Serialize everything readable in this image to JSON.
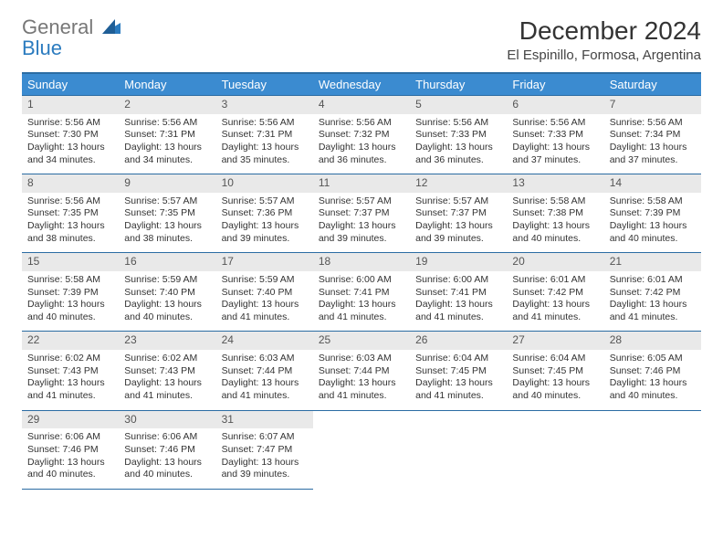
{
  "logo": {
    "line1": "General",
    "line2": "Blue"
  },
  "title": "December 2024",
  "subtitle": "El Espinillo, Formosa, Argentina",
  "colors": {
    "header_bg": "#3b8bd0",
    "header_text": "#ffffff",
    "daynum_bg": "#e9e9e9",
    "border": "#2b6ca3",
    "logo_blue": "#2b7bbf",
    "text": "#333333"
  },
  "dayNames": [
    "Sunday",
    "Monday",
    "Tuesday",
    "Wednesday",
    "Thursday",
    "Friday",
    "Saturday"
  ],
  "weeks": [
    [
      {
        "n": "1",
        "sr": "5:56 AM",
        "ss": "7:30 PM",
        "dl": "13 hours and 34 minutes."
      },
      {
        "n": "2",
        "sr": "5:56 AM",
        "ss": "7:31 PM",
        "dl": "13 hours and 34 minutes."
      },
      {
        "n": "3",
        "sr": "5:56 AM",
        "ss": "7:31 PM",
        "dl": "13 hours and 35 minutes."
      },
      {
        "n": "4",
        "sr": "5:56 AM",
        "ss": "7:32 PM",
        "dl": "13 hours and 36 minutes."
      },
      {
        "n": "5",
        "sr": "5:56 AM",
        "ss": "7:33 PM",
        "dl": "13 hours and 36 minutes."
      },
      {
        "n": "6",
        "sr": "5:56 AM",
        "ss": "7:33 PM",
        "dl": "13 hours and 37 minutes."
      },
      {
        "n": "7",
        "sr": "5:56 AM",
        "ss": "7:34 PM",
        "dl": "13 hours and 37 minutes."
      }
    ],
    [
      {
        "n": "8",
        "sr": "5:56 AM",
        "ss": "7:35 PM",
        "dl": "13 hours and 38 minutes."
      },
      {
        "n": "9",
        "sr": "5:57 AM",
        "ss": "7:35 PM",
        "dl": "13 hours and 38 minutes."
      },
      {
        "n": "10",
        "sr": "5:57 AM",
        "ss": "7:36 PM",
        "dl": "13 hours and 39 minutes."
      },
      {
        "n": "11",
        "sr": "5:57 AM",
        "ss": "7:37 PM",
        "dl": "13 hours and 39 minutes."
      },
      {
        "n": "12",
        "sr": "5:57 AM",
        "ss": "7:37 PM",
        "dl": "13 hours and 39 minutes."
      },
      {
        "n": "13",
        "sr": "5:58 AM",
        "ss": "7:38 PM",
        "dl": "13 hours and 40 minutes."
      },
      {
        "n": "14",
        "sr": "5:58 AM",
        "ss": "7:39 PM",
        "dl": "13 hours and 40 minutes."
      }
    ],
    [
      {
        "n": "15",
        "sr": "5:58 AM",
        "ss": "7:39 PM",
        "dl": "13 hours and 40 minutes."
      },
      {
        "n": "16",
        "sr": "5:59 AM",
        "ss": "7:40 PM",
        "dl": "13 hours and 40 minutes."
      },
      {
        "n": "17",
        "sr": "5:59 AM",
        "ss": "7:40 PM",
        "dl": "13 hours and 41 minutes."
      },
      {
        "n": "18",
        "sr": "6:00 AM",
        "ss": "7:41 PM",
        "dl": "13 hours and 41 minutes."
      },
      {
        "n": "19",
        "sr": "6:00 AM",
        "ss": "7:41 PM",
        "dl": "13 hours and 41 minutes."
      },
      {
        "n": "20",
        "sr": "6:01 AM",
        "ss": "7:42 PM",
        "dl": "13 hours and 41 minutes."
      },
      {
        "n": "21",
        "sr": "6:01 AM",
        "ss": "7:42 PM",
        "dl": "13 hours and 41 minutes."
      }
    ],
    [
      {
        "n": "22",
        "sr": "6:02 AM",
        "ss": "7:43 PM",
        "dl": "13 hours and 41 minutes."
      },
      {
        "n": "23",
        "sr": "6:02 AM",
        "ss": "7:43 PM",
        "dl": "13 hours and 41 minutes."
      },
      {
        "n": "24",
        "sr": "6:03 AM",
        "ss": "7:44 PM",
        "dl": "13 hours and 41 minutes."
      },
      {
        "n": "25",
        "sr": "6:03 AM",
        "ss": "7:44 PM",
        "dl": "13 hours and 41 minutes."
      },
      {
        "n": "26",
        "sr": "6:04 AM",
        "ss": "7:45 PM",
        "dl": "13 hours and 41 minutes."
      },
      {
        "n": "27",
        "sr": "6:04 AM",
        "ss": "7:45 PM",
        "dl": "13 hours and 40 minutes."
      },
      {
        "n": "28",
        "sr": "6:05 AM",
        "ss": "7:46 PM",
        "dl": "13 hours and 40 minutes."
      }
    ],
    [
      {
        "n": "29",
        "sr": "6:06 AM",
        "ss": "7:46 PM",
        "dl": "13 hours and 40 minutes."
      },
      {
        "n": "30",
        "sr": "6:06 AM",
        "ss": "7:46 PM",
        "dl": "13 hours and 40 minutes."
      },
      {
        "n": "31",
        "sr": "6:07 AM",
        "ss": "7:47 PM",
        "dl": "13 hours and 39 minutes."
      },
      null,
      null,
      null,
      null
    ]
  ],
  "labels": {
    "sunrise_prefix": "Sunrise: ",
    "sunset_prefix": "Sunset: ",
    "daylight_prefix": "Daylight: "
  }
}
